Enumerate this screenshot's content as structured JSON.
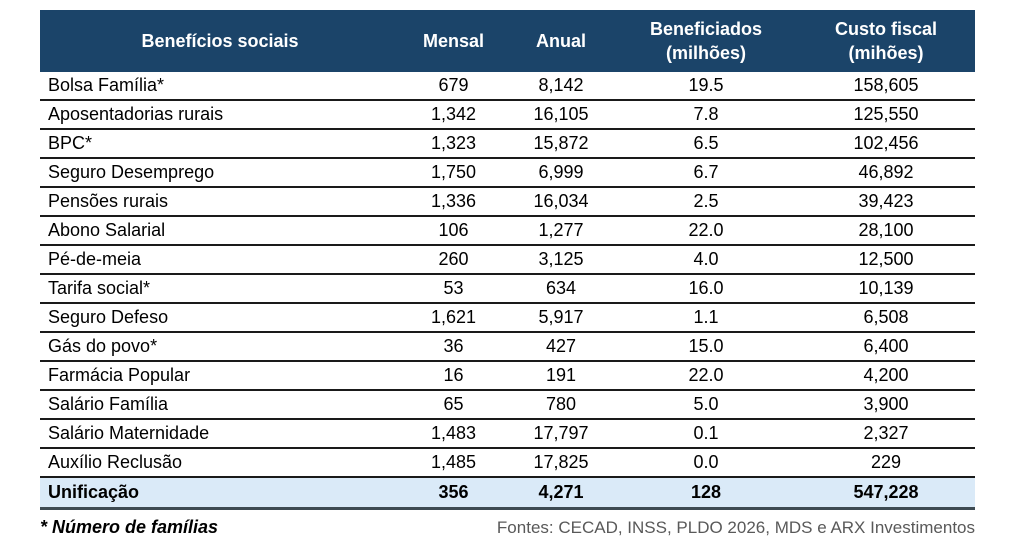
{
  "chart_data": {
    "type": "table",
    "columns": [
      "Benefícios sociais",
      "Mensal",
      "Anual",
      "Beneficiados\n(milhões)",
      "Custo fiscal\n(mihões)"
    ],
    "rows": [
      [
        "Bolsa Família*",
        "679",
        "8,142",
        "19.5",
        "158,605"
      ],
      [
        "Aposentadorias rurais",
        "1,342",
        "16,105",
        "7.8",
        "125,550"
      ],
      [
        "BPC*",
        "1,323",
        "15,872",
        "6.5",
        "102,456"
      ],
      [
        "Seguro Desemprego",
        "1,750",
        "6,999",
        "6.7",
        "46,892"
      ],
      [
        "Pensões rurais",
        "1,336",
        "16,034",
        "2.5",
        "39,423"
      ],
      [
        "Abono Salarial",
        "106",
        "1,277",
        "22.0",
        "28,100"
      ],
      [
        "Pé-de-meia",
        "260",
        "3,125",
        "4.0",
        "12,500"
      ],
      [
        "Tarifa social*",
        "53",
        "634",
        "16.0",
        "10,139"
      ],
      [
        "Seguro Defeso",
        "1,621",
        "5,917",
        "1.1",
        "6,508"
      ],
      [
        "Gás do povo*",
        "36",
        "427",
        "15.0",
        "6,400"
      ],
      [
        "Farmácia Popular",
        "16",
        "191",
        "22.0",
        "4,200"
      ],
      [
        "Salário Família",
        "65",
        "780",
        "5.0",
        "3,900"
      ],
      [
        "Salário Maternidade",
        "1,483",
        "17,797",
        "0.1",
        "2,327"
      ],
      [
        "Auxílio Reclusão",
        "1,485",
        "17,825",
        "0.0",
        "229"
      ]
    ],
    "total_row": [
      "Unificação",
      "356",
      "4,271",
      "128",
      "547,228"
    ],
    "footnote": "* Número de famílias",
    "sources": "Fontes: CECAD, INSS, PLDO 2026, MDS e ARX Investimentos"
  },
  "colors": {
    "header_bg": "#1B4469",
    "header_text": "#FFFFFF",
    "total_bg": "#DAEAF8",
    "row_border": "#1A1A1A",
    "heavy_border": "#3D4A52",
    "body_text": "#000000",
    "source_text": "#595959"
  }
}
